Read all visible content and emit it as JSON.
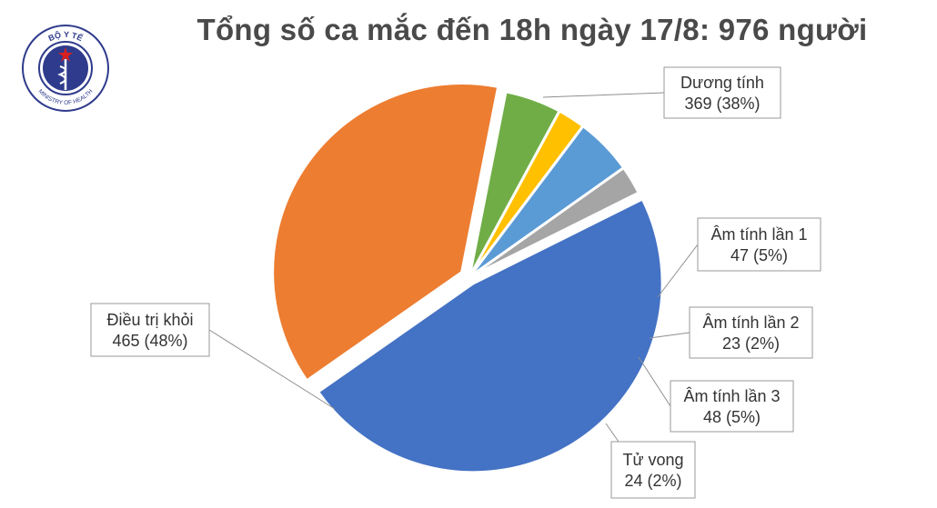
{
  "header": {
    "title": "Tổng số ca mắc đến 18h ngày 17/8: 976 người"
  },
  "logo": {
    "icon": "ministry-of-health-seal",
    "text_top": "BỘ Y TẾ",
    "text_bottom": "MINISTRY OF HEALTH"
  },
  "chart_data": {
    "type": "pie",
    "title": "Tổng số ca mắc đến 18h ngày 17/8: 976 người",
    "total": 976,
    "slices": [
      {
        "name": "Dương tính",
        "value": 369,
        "percent": "38%",
        "color": "#ED7D31",
        "label": "Dương tính",
        "value_label": "369 (38%)"
      },
      {
        "name": "Âm tính lần 1",
        "value": 47,
        "percent": "5%",
        "color": "#70AD47",
        "label": "Âm tính lần 1",
        "value_label": "47 (5%)"
      },
      {
        "name": "Âm tính lần 2",
        "value": 23,
        "percent": "2%",
        "color": "#FFC000",
        "label": "Âm tính lần 2",
        "value_label": "23 (2%)"
      },
      {
        "name": "Âm tính lần 3",
        "value": 48,
        "percent": "5%",
        "color": "#5B9BD5",
        "label": "Âm tính lần 3",
        "value_label": "48 (5%)"
      },
      {
        "name": "Tử vong",
        "value": 24,
        "percent": "2%",
        "color": "#A5A5A5",
        "label": "Tử vong",
        "value_label": "24 (2%)"
      },
      {
        "name": "Điều trị khỏi",
        "value": 465,
        "percent": "48%",
        "color": "#4472C4",
        "label": "Điều trị khỏi",
        "value_label": "465 (48%)"
      }
    ],
    "legend": "none"
  }
}
